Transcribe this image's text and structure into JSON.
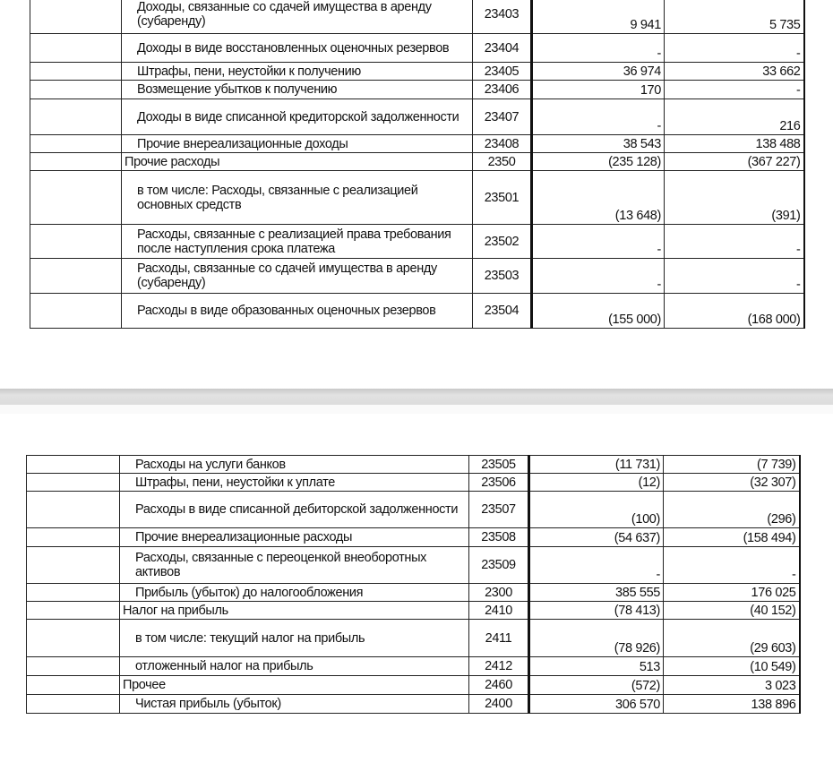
{
  "page1": {
    "rows": [
      {
        "label": "Доходы, связанные со сдачей имущества в аренду (субаренду)",
        "code": "23403",
        "current": "9 941",
        "previous": "5 735",
        "level": 1
      },
      {
        "label": "Доходы в виде восстановленных оценочных резервов",
        "code": "23404",
        "current": "-",
        "previous": "-",
        "level": 1
      },
      {
        "label": "Штрафы, пени, неустойки к получению",
        "code": "23405",
        "current": "36 974",
        "previous": "33 662",
        "level": 1
      },
      {
        "label": "Возмещение убытков к получению",
        "code": "23406",
        "current": "170",
        "previous": "-",
        "level": 1
      },
      {
        "label": "Доходы в виде списанной кредиторской задолженности",
        "code": "23407",
        "current": "-",
        "previous": "216",
        "level": 1
      },
      {
        "label": "Прочие внереализационные доходы",
        "code": "23408",
        "current": "38 543",
        "previous": "138 488",
        "level": 1
      },
      {
        "label": "Прочие расходы",
        "code": "2350",
        "current": "(235 128)",
        "previous": "(367 227)",
        "level": 0
      },
      {
        "label": "в том числе: Расходы, связанные с реализацией основных средств",
        "code": "23501",
        "current": "(13 648)",
        "previous": "(391)",
        "level": 1
      },
      {
        "label": "Расходы, связанные с реализацией права требования после наступления срока платежа",
        "code": "23502",
        "current": "-",
        "previous": "-",
        "level": 1
      },
      {
        "label": "Расходы, связанные со сдачей имущества в аренду (субаренду)",
        "code": "23503",
        "current": "-",
        "previous": "-",
        "level": 1
      },
      {
        "label": "Расходы в виде образованных оценочных резервов",
        "code": "23504",
        "current": "(155 000)",
        "previous": "(168 000)",
        "level": 1
      }
    ]
  },
  "page2": {
    "rows": [
      {
        "label": "Расходы на услуги банков",
        "code": "23505",
        "current": "(11 731)",
        "previous": "(7 739)",
        "level": 1
      },
      {
        "label": "Штрафы, пени, неустойки к уплате",
        "code": "23506",
        "current": "(12)",
        "previous": "(32 307)",
        "level": 1
      },
      {
        "label": "Расходы в виде списанной дебиторской задолженности",
        "code": "23507",
        "current": "(100)",
        "previous": "(296)",
        "level": 1
      },
      {
        "label": "Прочие внереализационные расходы",
        "code": "23508",
        "current": "(54 637)",
        "previous": "(158 494)",
        "level": 1
      },
      {
        "label": "Расходы, связанные с переоценкой внеоборотных активов",
        "code": "23509",
        "current": "-",
        "previous": "-",
        "level": 1
      },
      {
        "label": "Прибыль (убыток) до налогообложения",
        "code": "2300",
        "current": "385 555",
        "previous": "176 025",
        "level": 1
      },
      {
        "label": "Налог на прибыль",
        "code": "2410",
        "current": "(78 413)",
        "previous": "(40 152)",
        "level": 0
      },
      {
        "label": "в том числе: текущий налог на прибыль",
        "code": "2411",
        "current": "(78 926)",
        "previous": "(29 603)",
        "level": 1
      },
      {
        "label": "отложенный налог на прибыль",
        "code": "2412",
        "current": "513",
        "previous": "(10 549)",
        "level": 1
      },
      {
        "label": "Прочее",
        "code": "2460",
        "current": "(572)",
        "previous": "3 023",
        "level": 0
      },
      {
        "label": "Чистая прибыль (убыток)",
        "code": "2400",
        "current": "306 570",
        "previous": "138 896",
        "level": 1
      }
    ]
  }
}
